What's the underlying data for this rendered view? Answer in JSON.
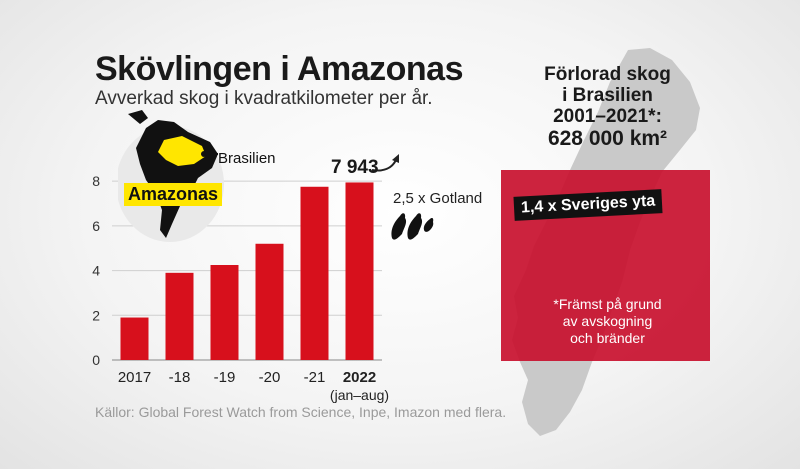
{
  "title": "Skövlingen i Amazonas",
  "subtitle": "Avverkad skog i kvadratkilometer per år.",
  "chart_data": {
    "type": "bar",
    "categories": [
      "2017",
      "-18",
      "-19",
      "-20",
      "-21",
      "2022"
    ],
    "category_sublabels": [
      "",
      "",
      "",
      "",
      "",
      "(jan–aug)"
    ],
    "values": [
      1.9,
      3.9,
      4.25,
      5.2,
      7.75,
      7.943
    ],
    "value_label": "7 943",
    "yticks": [
      "0",
      "2",
      "4",
      "6",
      "8"
    ],
    "ylim": [
      0,
      8.5
    ],
    "bar_color": "#d7101c",
    "grid": true
  },
  "map": {
    "brasilien": "Brasilien",
    "amazonas": "Amazonas",
    "icon": "south-america-map-icon"
  },
  "gotland": {
    "label": "2,5 x Gotland",
    "icon": "gotland-island-icon"
  },
  "stat": {
    "heading_lines": [
      "Förlorad skog",
      "i Brasilien",
      "2001–2021*:"
    ],
    "value": "628 000 km²",
    "banner": "1,4 x Sveriges yta",
    "note_lines": [
      "*Främst på grund",
      "av avskogning",
      "och bränder"
    ],
    "square_color": "#c8102e"
  },
  "source": "Källor: Global Forest Watch from Science, Inpe, Imazon med flera."
}
